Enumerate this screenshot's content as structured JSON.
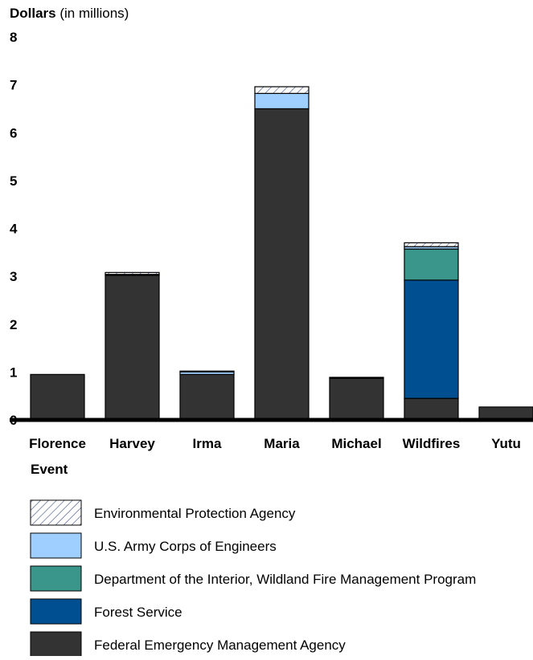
{
  "chart_data": {
    "type": "bar",
    "stacked": true,
    "ylabel_bold": "Dollars",
    "ylabel_rest": " (in millions)",
    "xlabel": "Event",
    "ylim": [
      0,
      8
    ],
    "yticks": [
      "0",
      "1",
      "2",
      "3",
      "4",
      "5",
      "6",
      "7",
      "8"
    ],
    "grid": false,
    "legend_position": "bottom",
    "categories": [
      "Florence",
      "Harvey",
      "Irma",
      "Maria",
      "Michael",
      "Wildfires",
      "Yutu"
    ],
    "series": [
      {
        "name": "Federal Emergency Management Agency",
        "color": "#333333",
        "pattern": "solid",
        "values": [
          0.95,
          3.02,
          0.95,
          6.5,
          0.87,
          0.45,
          0.27
        ]
      },
      {
        "name": "Forest Service",
        "color": "#004f91",
        "pattern": "solid",
        "values": [
          0,
          0,
          0,
          0,
          0.02,
          2.47,
          0
        ]
      },
      {
        "name": "Department of the Interior, Wildland Fire Management Program",
        "color": "#3a968a",
        "pattern": "solid",
        "values": [
          0,
          0,
          0,
          0,
          0,
          0.65,
          0
        ]
      },
      {
        "name": "U.S. Army Corps of Engineers",
        "color": "#9fcfff",
        "pattern": "solid",
        "values": [
          0,
          0.02,
          0.06,
          0.32,
          0,
          0.05,
          0
        ]
      },
      {
        "name": "Environmental Protection Agency",
        "color": "#ffffff",
        "pattern": "hatch",
        "values": [
          0,
          0.04,
          0.01,
          0.14,
          0,
          0.08,
          0
        ]
      }
    ],
    "legend_order": [
      "Environmental Protection Agency",
      "U.S. Army Corps of Engineers",
      "Department of the Interior, Wildland Fire Management Program",
      "Forest Service",
      "Federal Emergency Management Agency"
    ]
  }
}
